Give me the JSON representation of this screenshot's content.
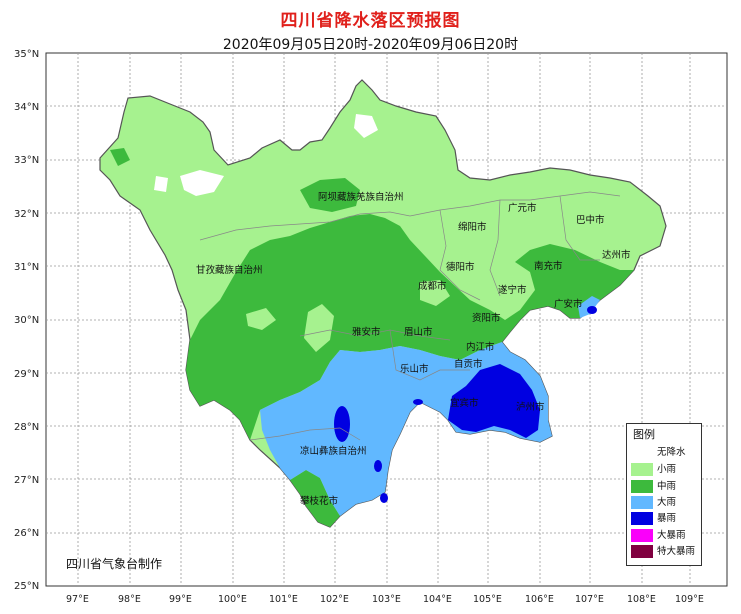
{
  "header": {
    "title": "四川省降水落区预报图",
    "subtitle": "2020年09月05日20时-2020年09月06日20时"
  },
  "axes": {
    "lat_labels": [
      "25°N",
      "26°N",
      "27°N",
      "28°N",
      "29°N",
      "30°N",
      "31°N",
      "32°N",
      "33°N",
      "34°N",
      "35°N"
    ],
    "lon_labels": [
      "97°E",
      "98°E",
      "99°E",
      "100°E",
      "101°E",
      "102°E",
      "103°E",
      "104°E",
      "105°E",
      "106°E",
      "107°E",
      "108°E",
      "109°E"
    ]
  },
  "places": {
    "aba": "阿坝藏族羌族自治州",
    "ganzi": "甘孜藏族自治州",
    "liangshan": "凉山彝族自治州",
    "guangyuan": "广元市",
    "bazhong": "巴中市",
    "mianyang": "绵阳市",
    "deyang": "德阳市",
    "nanchong": "南充市",
    "dazhou": "达州市",
    "chengdu": "成都市",
    "suining": "遂宁市",
    "guangan": "广安市",
    "ziyang": "资阳市",
    "yaan": "雅安市",
    "meishan": "眉山市",
    "neijiang": "内江市",
    "leshan": "乐山市",
    "zigong": "自贡市",
    "yibin": "宜宾市",
    "luzhou": "泸州市",
    "panzhihua": "攀枝花市"
  },
  "legend": {
    "title": "图例",
    "items": [
      {
        "label": "无降水",
        "color": "#ffffff"
      },
      {
        "label": "小雨",
        "color": "#a6f28f"
      },
      {
        "label": "中雨",
        "color": "#3dba3d"
      },
      {
        "label": "大雨",
        "color": "#61b8ff"
      },
      {
        "label": "暴雨",
        "color": "#0000e1"
      },
      {
        "label": "大暴雨",
        "color": "#fa00fa"
      },
      {
        "label": "特大暴雨",
        "color": "#800040"
      }
    ]
  },
  "footer": {
    "credit": "四川省气象台制作"
  }
}
